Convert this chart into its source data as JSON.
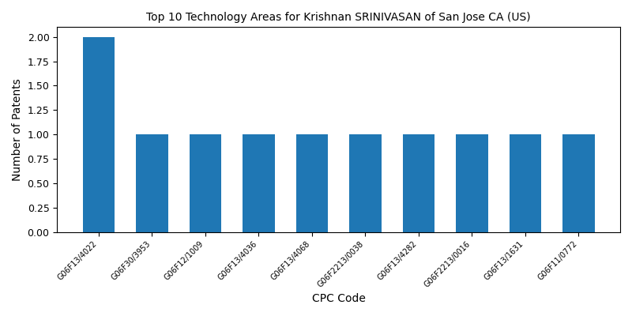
{
  "title": "Top 10 Technology Areas for Krishnan SRINIVASAN of San Jose CA (US)",
  "xlabel": "CPC Code",
  "ylabel": "Number of Patents",
  "categories": [
    "G06F13/4022",
    "G06F30/3953",
    "G06F12/1009",
    "G06F13/4036",
    "G06F13/4068",
    "G06F2213/0038",
    "G06F13/4282",
    "G06F2213/0016",
    "G06F13/1631",
    "G06F11/0772"
  ],
  "values": [
    2,
    1,
    1,
    1,
    1,
    1,
    1,
    1,
    1,
    1
  ],
  "bar_color": "#1f77b4",
  "bar_width": 0.6,
  "figsize": [
    8,
    4
  ],
  "dpi": 100,
  "ylim": [
    0,
    2.1
  ],
  "yticks": [
    0.0,
    0.25,
    0.5,
    0.75,
    1.0,
    1.25,
    1.5,
    1.75,
    2.0
  ],
  "title_fontsize": 10,
  "xlabel_fontsize": 10,
  "ylabel_fontsize": 10,
  "xtick_fontsize": 7,
  "ytick_fontsize": 9
}
